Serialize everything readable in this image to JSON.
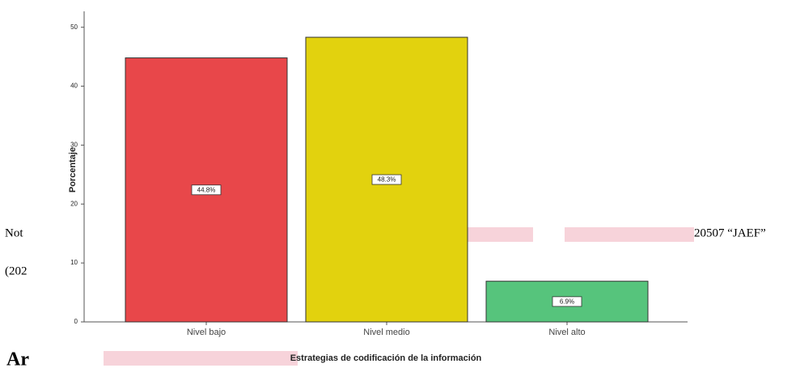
{
  "document_fragments": [
    "Not",
    "(202",
    "20507 “JAEF”",
    "Ar"
  ],
  "chart_data": {
    "type": "bar",
    "x_label": "Estrategias de codificación de la información",
    "y_label": "Porcentaje",
    "categories": [
      "Nivel bajo",
      "Nivel medio",
      "Nivel alto"
    ],
    "values": [
      44.8,
      48.3,
      6.9
    ],
    "value_labels": [
      "44.8%",
      "48.3%",
      "6.9%"
    ],
    "colors": [
      "#e8474a",
      "#e2d20e",
      "#56c47c"
    ],
    "ylim": [
      0,
      52.7
    ],
    "yticks": [
      0,
      10,
      20,
      30,
      40,
      50
    ]
  }
}
